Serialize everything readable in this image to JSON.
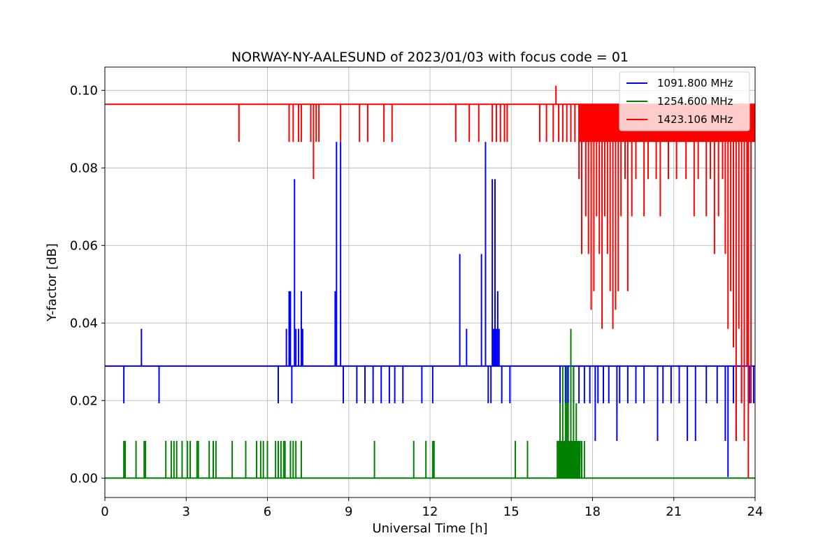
{
  "chart_data": {
    "type": "line",
    "title": "NORWAY-NY-AALESUND of 2023/01/03 with focus code = 01",
    "xlabel": "Universal Time [h]",
    "ylabel": "Y-factor [dB]",
    "xlim": [
      0,
      24
    ],
    "ylim": [
      -0.005,
      0.106
    ],
    "xticks": [
      0,
      3,
      6,
      9,
      12,
      15,
      18,
      21,
      24
    ],
    "xtick_labels": [
      "0",
      "3",
      "6",
      "9",
      "12",
      "15",
      "18",
      "21",
      "24"
    ],
    "yticks": [
      0.0,
      0.02,
      0.04,
      0.06,
      0.08,
      0.1
    ],
    "ytick_labels": [
      "0.00",
      "0.02",
      "0.04",
      "0.06",
      "0.08",
      "0.10"
    ],
    "grid": true,
    "legend_position": "top-right",
    "series": [
      {
        "name": "1091.800 MHz",
        "color": "#0000ff",
        "baseline": 0.0289,
        "spikes": [
          [
            0.7,
            0.0193
          ],
          [
            1.35,
            0.0385
          ],
          [
            2.0,
            0.0193
          ],
          [
            6.4,
            0.0193
          ],
          [
            6.7,
            0.0385
          ],
          [
            6.8,
            0.0482
          ],
          [
            6.85,
            0.0482
          ],
          [
            6.9,
            0.0193
          ],
          [
            7.0,
            0.0771
          ],
          [
            7.05,
            0.0385
          ],
          [
            7.15,
            0.0385
          ],
          [
            7.25,
            0.0482
          ],
          [
            7.3,
            0.0385
          ],
          [
            8.5,
            0.0482
          ],
          [
            8.55,
            0.0867
          ],
          [
            8.7,
            0.0867
          ],
          [
            8.8,
            0.0193
          ],
          [
            9.3,
            0.0193
          ],
          [
            9.6,
            0.0193
          ],
          [
            9.9,
            0.0193
          ],
          [
            10.2,
            0.0193
          ],
          [
            10.5,
            0.0193
          ],
          [
            10.7,
            0.0193
          ],
          [
            11.0,
            0.0193
          ],
          [
            11.7,
            0.0193
          ],
          [
            12.1,
            0.0193
          ],
          [
            13.1,
            0.0578
          ],
          [
            13.35,
            0.0385
          ],
          [
            13.9,
            0.0578
          ],
          [
            14.05,
            0.0867
          ],
          [
            14.15,
            0.0193
          ],
          [
            14.25,
            0.0193
          ],
          [
            14.3,
            0.0771
          ],
          [
            14.35,
            0.0385
          ],
          [
            14.4,
            0.0771
          ],
          [
            14.45,
            0.0385
          ],
          [
            14.5,
            0.0482
          ],
          [
            14.55,
            0.0385
          ],
          [
            14.65,
            0.0193
          ],
          [
            14.95,
            0.0193
          ],
          [
            16.8,
            0.0193
          ],
          [
            17.0,
            0.0193
          ],
          [
            17.1,
            0.0193
          ],
          [
            17.3,
            0.0193
          ],
          [
            17.5,
            0.0193
          ],
          [
            17.7,
            0.0193
          ],
          [
            17.9,
            0.0193
          ],
          [
            18.1,
            0.0096
          ],
          [
            18.2,
            0.0193
          ],
          [
            18.4,
            0.0193
          ],
          [
            18.6,
            0.0193
          ],
          [
            18.9,
            0.0096
          ],
          [
            19.0,
            0.0193
          ],
          [
            19.3,
            0.0193
          ],
          [
            19.6,
            0.0193
          ],
          [
            19.9,
            0.0193
          ],
          [
            20.4,
            0.0096
          ],
          [
            20.6,
            0.0193
          ],
          [
            20.9,
            0.0193
          ],
          [
            21.2,
            0.0193
          ],
          [
            21.5,
            0.0096
          ],
          [
            21.8,
            0.0096
          ],
          [
            22.2,
            0.0193
          ],
          [
            22.6,
            0.0193
          ],
          [
            22.9,
            0.0096
          ],
          [
            23.0,
            0.0003
          ],
          [
            23.2,
            0.0193
          ],
          [
            23.3,
            0.0096
          ],
          [
            23.5,
            0.0193
          ],
          [
            23.6,
            0.0096
          ],
          [
            23.8,
            0.0193
          ],
          [
            23.95,
            0.0193
          ]
        ]
      },
      {
        "name": "1254.600 MHz",
        "color": "#008000",
        "baseline": 0.0,
        "spikes": [
          [
            0.7,
            0.0096
          ],
          [
            0.75,
            0.0096
          ],
          [
            1.15,
            0.0096
          ],
          [
            1.45,
            0.0096
          ],
          [
            1.5,
            0.0096
          ],
          [
            2.25,
            0.0096
          ],
          [
            2.45,
            0.0096
          ],
          [
            2.55,
            0.0096
          ],
          [
            2.65,
            0.0096
          ],
          [
            2.85,
            0.0096
          ],
          [
            3.05,
            0.0096
          ],
          [
            3.15,
            0.0096
          ],
          [
            3.4,
            0.0096
          ],
          [
            3.45,
            0.0096
          ],
          [
            3.85,
            0.0096
          ],
          [
            4.0,
            0.0096
          ],
          [
            4.1,
            0.0096
          ],
          [
            4.7,
            0.0096
          ],
          [
            5.2,
            0.0096
          ],
          [
            5.6,
            0.0096
          ],
          [
            5.75,
            0.0096
          ],
          [
            5.85,
            0.0096
          ],
          [
            6.0,
            0.0096
          ],
          [
            6.3,
            0.0096
          ],
          [
            6.4,
            0.0096
          ],
          [
            6.5,
            0.0096
          ],
          [
            6.6,
            0.0096
          ],
          [
            6.65,
            0.0096
          ],
          [
            6.85,
            0.0096
          ],
          [
            6.95,
            0.0096
          ],
          [
            7.05,
            0.0096
          ],
          [
            7.25,
            0.0096
          ],
          [
            9.95,
            0.0096
          ],
          [
            11.4,
            0.0096
          ],
          [
            11.85,
            0.0096
          ],
          [
            12.1,
            0.0096
          ],
          [
            12.15,
            0.0096
          ],
          [
            15.15,
            0.0096
          ],
          [
            15.6,
            0.0096
          ],
          [
            16.7,
            0.0096
          ],
          [
            16.8,
            0.0193
          ],
          [
            16.9,
            0.0289
          ],
          [
            17.0,
            0.0193
          ],
          [
            17.05,
            0.0289
          ],
          [
            17.1,
            0.0193
          ],
          [
            17.2,
            0.0385
          ],
          [
            17.3,
            0.0289
          ],
          [
            17.4,
            0.0193
          ],
          [
            17.5,
            0.0096
          ],
          [
            17.6,
            0.0096
          ],
          [
            17.7,
            0.0096
          ]
        ],
        "dense_band": [
          16.75,
          17.55,
          0.0096
        ]
      },
      {
        "name": "1423.106 MHz",
        "color": "#ff0000",
        "baseline": 0.0964,
        "spikes": [
          [
            4.95,
            0.0867
          ],
          [
            6.8,
            0.0867
          ],
          [
            6.95,
            0.0867
          ],
          [
            7.15,
            0.0867
          ],
          [
            7.25,
            0.0867
          ],
          [
            7.6,
            0.0867
          ],
          [
            7.7,
            0.0771
          ],
          [
            7.8,
            0.0867
          ],
          [
            7.9,
            0.0867
          ],
          [
            8.7,
            0.0867
          ],
          [
            9.4,
            0.0867
          ],
          [
            9.7,
            0.0867
          ],
          [
            10.3,
            0.0867
          ],
          [
            10.6,
            0.0867
          ],
          [
            12.95,
            0.0867
          ],
          [
            13.45,
            0.0867
          ],
          [
            13.8,
            0.0867
          ],
          [
            14.3,
            0.0867
          ],
          [
            14.45,
            0.0867
          ],
          [
            14.6,
            0.0867
          ],
          [
            14.75,
            0.0867
          ],
          [
            14.85,
            0.0867
          ],
          [
            16.05,
            0.0867
          ],
          [
            16.3,
            0.0867
          ],
          [
            16.55,
            0.0867
          ],
          [
            16.65,
            0.1012
          ],
          [
            16.75,
            0.0867
          ],
          [
            16.9,
            0.0867
          ],
          [
            17.05,
            0.0867
          ],
          [
            17.2,
            0.0867
          ],
          [
            17.35,
            0.0867
          ],
          [
            17.5,
            0.0771
          ],
          [
            17.6,
            0.0578
          ],
          [
            17.75,
            0.0675
          ],
          [
            17.85,
            0.0578
          ],
          [
            17.95,
            0.0434
          ],
          [
            18.05,
            0.0482
          ],
          [
            18.15,
            0.0675
          ],
          [
            18.25,
            0.0578
          ],
          [
            18.35,
            0.0385
          ],
          [
            18.45,
            0.0675
          ],
          [
            18.55,
            0.0578
          ],
          [
            18.65,
            0.0482
          ],
          [
            18.75,
            0.0385
          ],
          [
            18.85,
            0.0434
          ],
          [
            18.95,
            0.0482
          ],
          [
            19.05,
            0.0675
          ],
          [
            19.2,
            0.0771
          ],
          [
            19.3,
            0.0482
          ],
          [
            19.45,
            0.0675
          ],
          [
            19.6,
            0.0771
          ],
          [
            19.75,
            0.0867
          ],
          [
            19.9,
            0.0675
          ],
          [
            20.05,
            0.0771
          ],
          [
            20.2,
            0.0867
          ],
          [
            20.35,
            0.0771
          ],
          [
            20.5,
            0.0675
          ],
          [
            20.65,
            0.0867
          ],
          [
            20.8,
            0.0771
          ],
          [
            20.95,
            0.0867
          ],
          [
            21.1,
            0.0771
          ],
          [
            21.3,
            0.0867
          ],
          [
            21.45,
            0.0771
          ],
          [
            21.6,
            0.0867
          ],
          [
            21.75,
            0.0675
          ],
          [
            21.9,
            0.0771
          ],
          [
            22.05,
            0.0867
          ],
          [
            22.2,
            0.0675
          ],
          [
            22.35,
            0.0771
          ],
          [
            22.5,
            0.0578
          ],
          [
            22.65,
            0.0675
          ],
          [
            22.8,
            0.0771
          ],
          [
            22.9,
            0.0578
          ],
          [
            23.0,
            0.0385
          ],
          [
            23.1,
            0.0482
          ],
          [
            23.2,
            0.0337
          ],
          [
            23.3,
            0.0096
          ],
          [
            23.4,
            0.0385
          ],
          [
            23.5,
            0.0193
          ],
          [
            23.6,
            0.0096
          ],
          [
            23.7,
            0.0289
          ],
          [
            23.75,
            0.0
          ],
          [
            23.85,
            0.0193
          ],
          [
            23.95,
            0.0867
          ]
        ],
        "dense_band": [
          17.5,
          24.0,
          0.0867
        ]
      }
    ]
  }
}
